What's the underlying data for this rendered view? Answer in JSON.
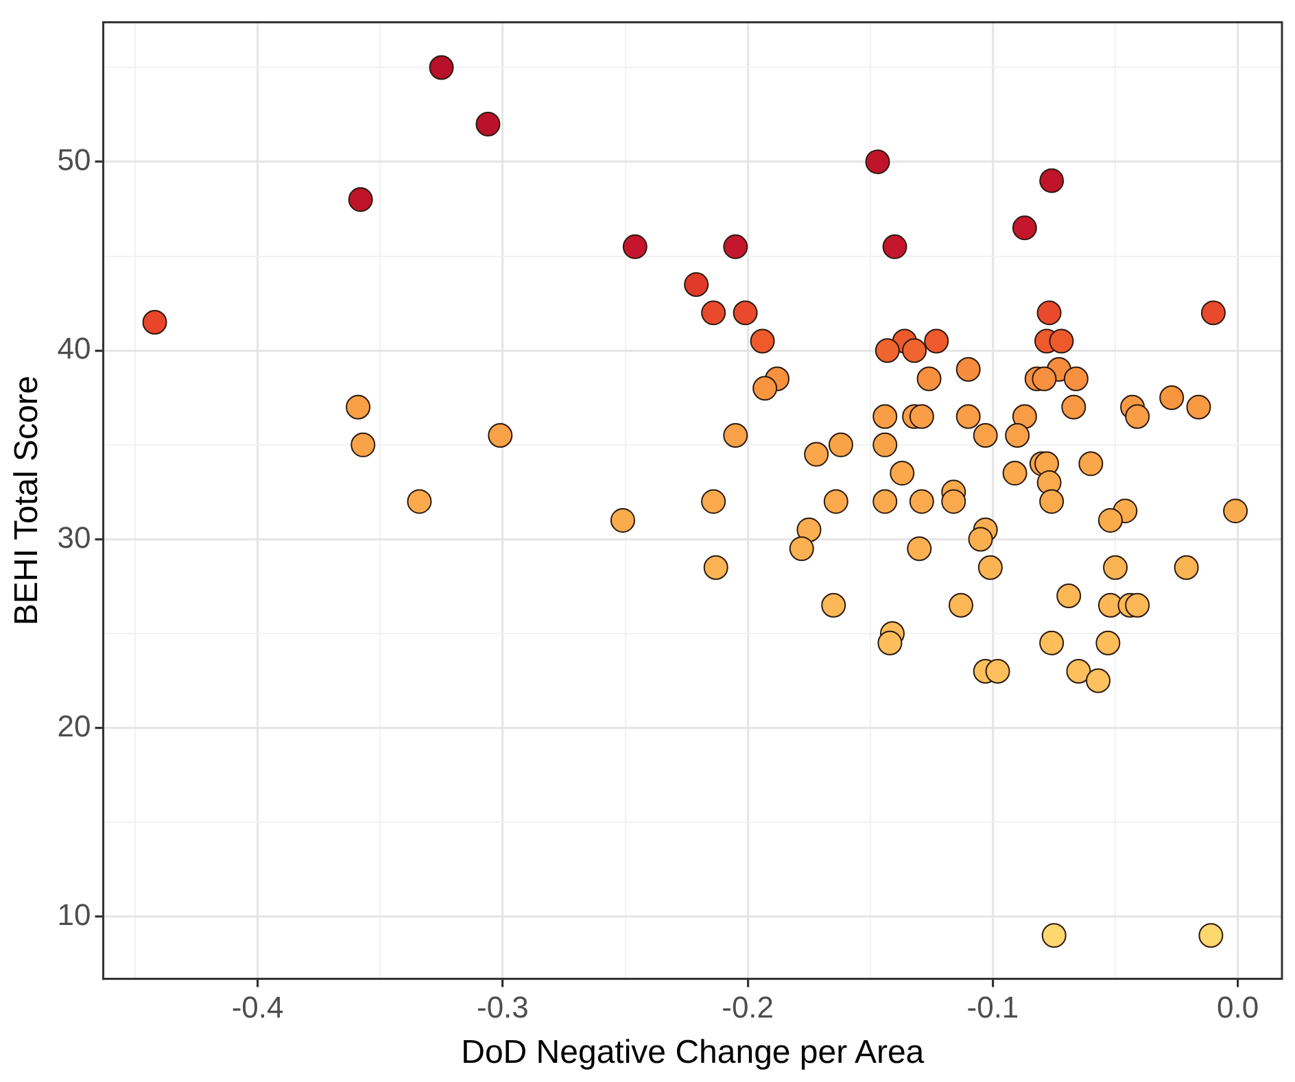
{
  "chart_data": {
    "type": "scatter",
    "xlabel": "DoD Negative Change per Area",
    "ylabel": "BEHI Total Score",
    "xlim": [
      -0.463,
      0.018
    ],
    "ylim": [
      6.7,
      57.4
    ],
    "xticks": [
      {
        "value": -0.45,
        "label": null
      },
      -0.4,
      {
        "value": -0.35,
        "label": null
      },
      -0.3,
      {
        "value": -0.25,
        "label": null
      },
      -0.2,
      {
        "value": -0.15,
        "label": null
      },
      -0.1,
      {
        "value": -0.05,
        "label": null
      },
      {
        "value": 0,
        "label": "0.0"
      }
    ],
    "yticks": [
      10,
      {
        "value": 15,
        "label": null
      },
      20,
      {
        "value": 25,
        "label": null
      },
      30,
      {
        "value": 35,
        "label": null
      },
      40,
      {
        "value": 45,
        "label": null
      },
      50,
      {
        "value": 55,
        "label": null
      }
    ],
    "grid": true,
    "legend": false,
    "marker": "circle",
    "x": [
      -0.442,
      -0.358,
      -0.325,
      -0.306,
      -0.359,
      -0.357,
      -0.334,
      -0.301,
      -0.251,
      -0.246,
      -0.147,
      -0.076,
      -0.087,
      -0.205,
      -0.14,
      -0.221,
      -0.214,
      -0.201,
      -0.077,
      -0.01,
      -0.194,
      -0.136,
      -0.123,
      -0.143,
      -0.132,
      -0.078,
      -0.072,
      -0.188,
      -0.193,
      -0.126,
      -0.11,
      -0.073,
      -0.082,
      -0.079,
      -0.066,
      -0.067,
      -0.043,
      -0.041,
      -0.027,
      -0.016,
      -0.205,
      -0.144,
      -0.132,
      -0.129,
      -0.11,
      -0.087,
      -0.103,
      -0.09,
      -0.144,
      -0.162,
      -0.172,
      -0.137,
      -0.091,
      -0.08,
      -0.078,
      -0.077,
      -0.06,
      -0.214,
      -0.164,
      -0.144,
      -0.129,
      -0.116,
      -0.116,
      -0.076,
      -0.046,
      -0.052,
      -0.001,
      -0.175,
      -0.103,
      -0.105,
      -0.178,
      -0.13,
      -0.213,
      -0.101,
      -0.05,
      -0.021,
      -0.165,
      -0.113,
      -0.069,
      -0.052,
      -0.044,
      -0.041,
      -0.141,
      -0.142,
      -0.076,
      -0.053,
      -0.103,
      -0.098,
      -0.065,
      -0.057,
      -0.075,
      -0.011
    ],
    "values": [
      41.5,
      48,
      55,
      52,
      37,
      35,
      32,
      35.5,
      31,
      45.5,
      50,
      49,
      46.5,
      45.5,
      45.5,
      43.5,
      42,
      42,
      42,
      42,
      40.5,
      40.5,
      40.5,
      40,
      40,
      40.5,
      40.5,
      38.5,
      38,
      38.5,
      39,
      39,
      38.5,
      38.5,
      38.5,
      37,
      37,
      36.5,
      37.5,
      37,
      35.5,
      36.5,
      36.5,
      36.5,
      36.5,
      36.5,
      35.5,
      35.5,
      35,
      35,
      34.5,
      33.5,
      33.5,
      34,
      34,
      33,
      34,
      32,
      32,
      32,
      32,
      32.5,
      32,
      32,
      31.5,
      31,
      31.5,
      30.5,
      30.5,
      30,
      29.5,
      29.5,
      28.5,
      28.5,
      28.5,
      28.5,
      26.5,
      26.5,
      27,
      26.5,
      26.5,
      26.5,
      25,
      24.5,
      24.5,
      24.5,
      23,
      23,
      23,
      22.5,
      9,
      9
    ],
    "colors": [
      "#e8452b",
      "#c0142b",
      "#b80f2a",
      "#bb122b",
      "#f9a047",
      "#f9a349",
      "#faaa4c",
      "#f9a148",
      "#faac4d",
      "#c4162c",
      "#c0142b",
      "#c0142b",
      "#c4162c",
      "#c4162c",
      "#c4162c",
      "#e03a2a",
      "#ea4a2c",
      "#ea4a2c",
      "#ea4a2c",
      "#ea4a2c",
      "#ee5a2c",
      "#ee5a2c",
      "#ee5a2c",
      "#f0642f",
      "#f0642f",
      "#ee5a2c",
      "#ee5a2c",
      "#f7913f",
      "#f89540",
      "#f7913f",
      "#f68c3e",
      "#f68c3e",
      "#f7913f",
      "#f7913f",
      "#f7913f",
      "#f89a44",
      "#f89a44",
      "#f99d46",
      "#f8963f",
      "#f89a44",
      "#f9a148",
      "#f99d46",
      "#f99d46",
      "#f99d46",
      "#f99d46",
      "#f99d46",
      "#f9a148",
      "#f9a148",
      "#f9a349",
      "#f9a349",
      "#faa64a",
      "#faa84b",
      "#faa84b",
      "#faa64a",
      "#faa64a",
      "#faa94c",
      "#faa64a",
      "#faaa4c",
      "#faaa4c",
      "#faaa4c",
      "#faaa4c",
      "#faaa4c",
      "#faaa4c",
      "#faaa4c",
      "#faab4d",
      "#faac4d",
      "#faab4d",
      "#fbae4f",
      "#fbae4f",
      "#fbb050",
      "#fbb151",
      "#fbb151",
      "#fbb453",
      "#fbb453",
      "#fbb453",
      "#fbb453",
      "#fcb856",
      "#fcb856",
      "#fcb755",
      "#fcb856",
      "#fcb856",
      "#fcb856",
      "#fcbc59",
      "#fcbd5a",
      "#fcbd5a",
      "#fcbd5a",
      "#fdc05d",
      "#fdc05d",
      "#fdc05d",
      "#fdc15e",
      "#fed76e",
      "#fed76e"
    ]
  }
}
